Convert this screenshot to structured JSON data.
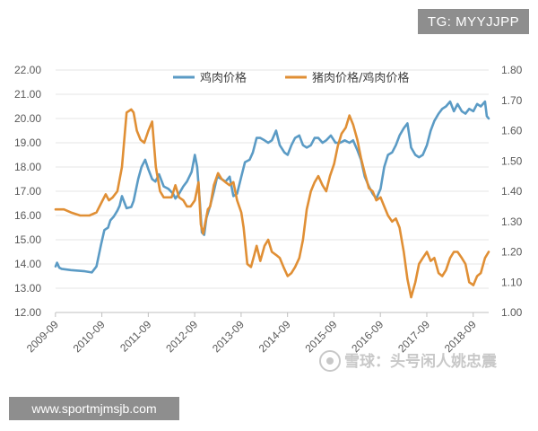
{
  "overlays": {
    "top_right_tag": "TG: MYYJJPP",
    "bottom_left_url": "www.sportmjmsjb.com",
    "watermark": "雪球：头号闲人姚忠震"
  },
  "colors": {
    "chicken_price": "#5b9bc5",
    "ratio": "#e08f35",
    "axis": "#bfbfbf",
    "grid": "#e6e6e6"
  },
  "chart_data": {
    "type": "line",
    "title": "",
    "legend_position": "top-center",
    "grid": true,
    "x_tick_labels": [
      "2009-09",
      "2010-09",
      "2011-09",
      "2012-09",
      "2013-09",
      "2014-09",
      "2015-09",
      "2016-09",
      "2017-09",
      "2018-09"
    ],
    "x_range": [
      2009.67,
      2019.0
    ],
    "y_left": {
      "range": [
        12.0,
        22.0
      ],
      "ticks": [
        "12.00",
        "13.00",
        "14.00",
        "15.00",
        "16.00",
        "17.00",
        "18.00",
        "19.00",
        "20.00",
        "21.00",
        "22.00"
      ]
    },
    "y_right": {
      "range": [
        1.0,
        1.8
      ],
      "ticks": [
        "1.00",
        "1.10",
        "1.20",
        "1.30",
        "1.40",
        "1.50",
        "1.60",
        "1.70",
        "1.80"
      ]
    },
    "series": [
      {
        "name": "鸡肉价格",
        "axis": "left",
        "x": [
          2009.67,
          2009.7,
          2009.75,
          2009.8,
          2010.0,
          2010.3,
          2010.45,
          2010.55,
          2010.65,
          2010.72,
          2010.8,
          2010.85,
          2010.92,
          2011.0,
          2011.05,
          2011.1,
          2011.2,
          2011.3,
          2011.35,
          2011.45,
          2011.52,
          2011.6,
          2011.67,
          2011.75,
          2011.82,
          2011.9,
          2012.0,
          2012.1,
          2012.2,
          2012.25,
          2012.33,
          2012.42,
          2012.5,
          2012.6,
          2012.67,
          2012.72,
          2012.78,
          2012.82,
          2012.87,
          2012.92,
          2013.0,
          2013.08,
          2013.15,
          2013.25,
          2013.33,
          2013.42,
          2013.5,
          2013.58,
          2013.67,
          2013.75,
          2013.85,
          2013.92,
          2014.0,
          2014.08,
          2014.17,
          2014.25,
          2014.33,
          2014.42,
          2014.5,
          2014.6,
          2014.67,
          2014.75,
          2014.83,
          2014.92,
          2015.0,
          2015.08,
          2015.17,
          2015.25,
          2015.33,
          2015.42,
          2015.5,
          2015.6,
          2015.7,
          2015.8,
          2015.9,
          2016.0,
          2016.08,
          2016.17,
          2016.25,
          2016.33,
          2016.42,
          2016.5,
          2016.58,
          2016.67,
          2016.75,
          2016.83,
          2016.92,
          2017.0,
          2017.08,
          2017.17,
          2017.25,
          2017.33,
          2017.42,
          2017.5,
          2017.58,
          2017.67,
          2017.75,
          2017.83,
          2017.92,
          2018.0,
          2018.08,
          2018.17,
          2018.25,
          2018.33,
          2018.42,
          2018.5,
          2018.58,
          2018.67,
          2018.75,
          2018.83,
          2018.92,
          2018.96,
          2019.0
        ],
        "values": [
          13.9,
          14.05,
          13.85,
          13.8,
          13.75,
          13.7,
          13.65,
          13.9,
          14.8,
          15.4,
          15.5,
          15.8,
          15.95,
          16.2,
          16.4,
          16.8,
          16.3,
          16.35,
          16.6,
          17.5,
          18.0,
          18.3,
          17.9,
          17.5,
          17.4,
          17.7,
          17.2,
          17.1,
          16.9,
          16.7,
          16.9,
          17.2,
          17.4,
          17.8,
          18.5,
          18.0,
          16.5,
          15.3,
          15.2,
          15.9,
          16.4,
          17.0,
          17.6,
          17.5,
          17.4,
          17.6,
          16.8,
          16.9,
          17.6,
          18.2,
          18.3,
          18.6,
          19.2,
          19.2,
          19.1,
          19.0,
          19.1,
          19.5,
          18.9,
          18.6,
          18.5,
          18.9,
          19.2,
          19.3,
          18.9,
          18.8,
          18.9,
          19.2,
          19.2,
          19.0,
          19.1,
          19.3,
          19.0,
          19.0,
          19.1,
          19.0,
          19.1,
          18.7,
          18.3,
          17.6,
          17.2,
          16.9,
          16.7,
          17.1,
          18.0,
          18.5,
          18.6,
          18.9,
          19.3,
          19.6,
          19.8,
          18.8,
          18.5,
          18.4,
          18.5,
          18.9,
          19.5,
          19.9,
          20.2,
          20.4,
          20.5,
          20.7,
          20.3,
          20.6,
          20.3,
          20.2,
          20.4,
          20.3,
          20.6,
          20.5,
          20.7,
          20.1,
          20.0
        ]
      },
      {
        "name": "猪肉价格/鸡肉价格",
        "axis": "right",
        "x": [
          2009.67,
          2009.75,
          2009.85,
          2010.0,
          2010.2,
          2010.4,
          2010.55,
          2010.65,
          2010.75,
          2010.82,
          2010.9,
          2011.0,
          2011.1,
          2011.2,
          2011.3,
          2011.35,
          2011.42,
          2011.5,
          2011.58,
          2011.67,
          2011.75,
          2011.83,
          2011.92,
          2012.0,
          2012.08,
          2012.17,
          2012.25,
          2012.33,
          2012.42,
          2012.5,
          2012.58,
          2012.67,
          2012.75,
          2012.8,
          2012.85,
          2012.9,
          2012.95,
          2013.0,
          2013.08,
          2013.17,
          2013.25,
          2013.33,
          2013.42,
          2013.5,
          2013.58,
          2013.67,
          2013.72,
          2013.8,
          2013.88,
          2013.95,
          2014.0,
          2014.08,
          2014.17,
          2014.25,
          2014.33,
          2014.42,
          2014.5,
          2014.58,
          2014.67,
          2014.75,
          2014.83,
          2014.92,
          2015.0,
          2015.08,
          2015.17,
          2015.25,
          2015.33,
          2015.42,
          2015.5,
          2015.58,
          2015.67,
          2015.75,
          2015.83,
          2015.92,
          2016.0,
          2016.08,
          2016.17,
          2016.25,
          2016.33,
          2016.42,
          2016.5,
          2016.58,
          2016.67,
          2016.75,
          2016.83,
          2016.92,
          2017.0,
          2017.08,
          2017.17,
          2017.25,
          2017.33,
          2017.42,
          2017.5,
          2017.58,
          2017.67,
          2017.75,
          2017.83,
          2017.92,
          2018.0,
          2018.08,
          2018.17,
          2018.25,
          2018.33,
          2018.42,
          2018.5,
          2018.58,
          2018.67,
          2018.75,
          2018.83,
          2018.92,
          2019.0
        ],
        "values": [
          1.34,
          1.34,
          1.34,
          1.33,
          1.32,
          1.32,
          1.33,
          1.36,
          1.39,
          1.37,
          1.38,
          1.4,
          1.48,
          1.66,
          1.67,
          1.66,
          1.6,
          1.57,
          1.56,
          1.6,
          1.63,
          1.48,
          1.4,
          1.38,
          1.38,
          1.38,
          1.42,
          1.38,
          1.37,
          1.35,
          1.35,
          1.37,
          1.43,
          1.29,
          1.26,
          1.3,
          1.34,
          1.35,
          1.42,
          1.46,
          1.44,
          1.43,
          1.42,
          1.43,
          1.37,
          1.33,
          1.28,
          1.16,
          1.15,
          1.19,
          1.22,
          1.17,
          1.22,
          1.24,
          1.2,
          1.19,
          1.18,
          1.15,
          1.12,
          1.13,
          1.15,
          1.18,
          1.24,
          1.34,
          1.4,
          1.43,
          1.45,
          1.42,
          1.4,
          1.45,
          1.49,
          1.55,
          1.59,
          1.61,
          1.65,
          1.62,
          1.57,
          1.51,
          1.46,
          1.41,
          1.4,
          1.37,
          1.38,
          1.35,
          1.32,
          1.3,
          1.31,
          1.28,
          1.2,
          1.11,
          1.05,
          1.1,
          1.16,
          1.18,
          1.2,
          1.17,
          1.18,
          1.13,
          1.12,
          1.14,
          1.18,
          1.2,
          1.2,
          1.18,
          1.16,
          1.1,
          1.09,
          1.12,
          1.13,
          1.18,
          1.2
        ]
      }
    ]
  }
}
